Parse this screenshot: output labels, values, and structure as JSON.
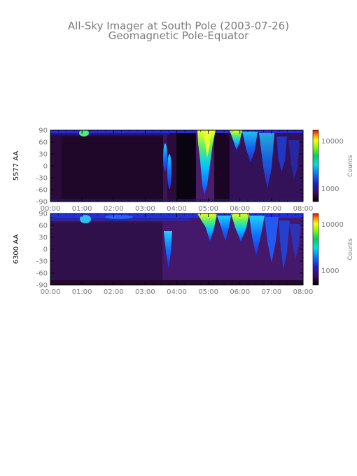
{
  "title": {
    "line1": "All-Sky Imager at South Pole (2003-07-26)",
    "line2": "Geomagnetic Pole-Equator"
  },
  "chart_data": [
    {
      "type": "heatmap",
      "ylabel": "5577 AA",
      "x_ticks": [
        "00:00",
        "01:00",
        "02:00",
        "03:00",
        "04:00",
        "05:00",
        "06:00",
        "07:00",
        "08:00"
      ],
      "y_ticks": [
        90,
        60,
        30,
        0,
        -30,
        -60,
        -90
      ],
      "xlim": [
        "00:00",
        "08:00"
      ],
      "ylim": [
        -90,
        90
      ],
      "colorbar": {
        "label": "Counts",
        "ticks": [
          "10000",
          "1000"
        ],
        "scale": "log"
      }
    },
    {
      "type": "heatmap",
      "ylabel": "6300 AA",
      "x_ticks": [
        "00:00",
        "01:00",
        "02:00",
        "03:00",
        "04:00",
        "05:00",
        "06:00",
        "07:00",
        "08:00"
      ],
      "y_ticks": [
        90,
        60,
        30,
        0,
        -30,
        -60,
        -90
      ],
      "xlim": [
        "00:00",
        "08:00"
      ],
      "ylim": [
        -90,
        90
      ],
      "colorbar": {
        "label": "Counts",
        "ticks": [
          "10000",
          "1000"
        ],
        "scale": "log"
      }
    }
  ],
  "colors": {
    "text": "#7a7a7a",
    "frame": "#000000",
    "background_a": "#1e0926",
    "background_b": "#3a1257"
  }
}
